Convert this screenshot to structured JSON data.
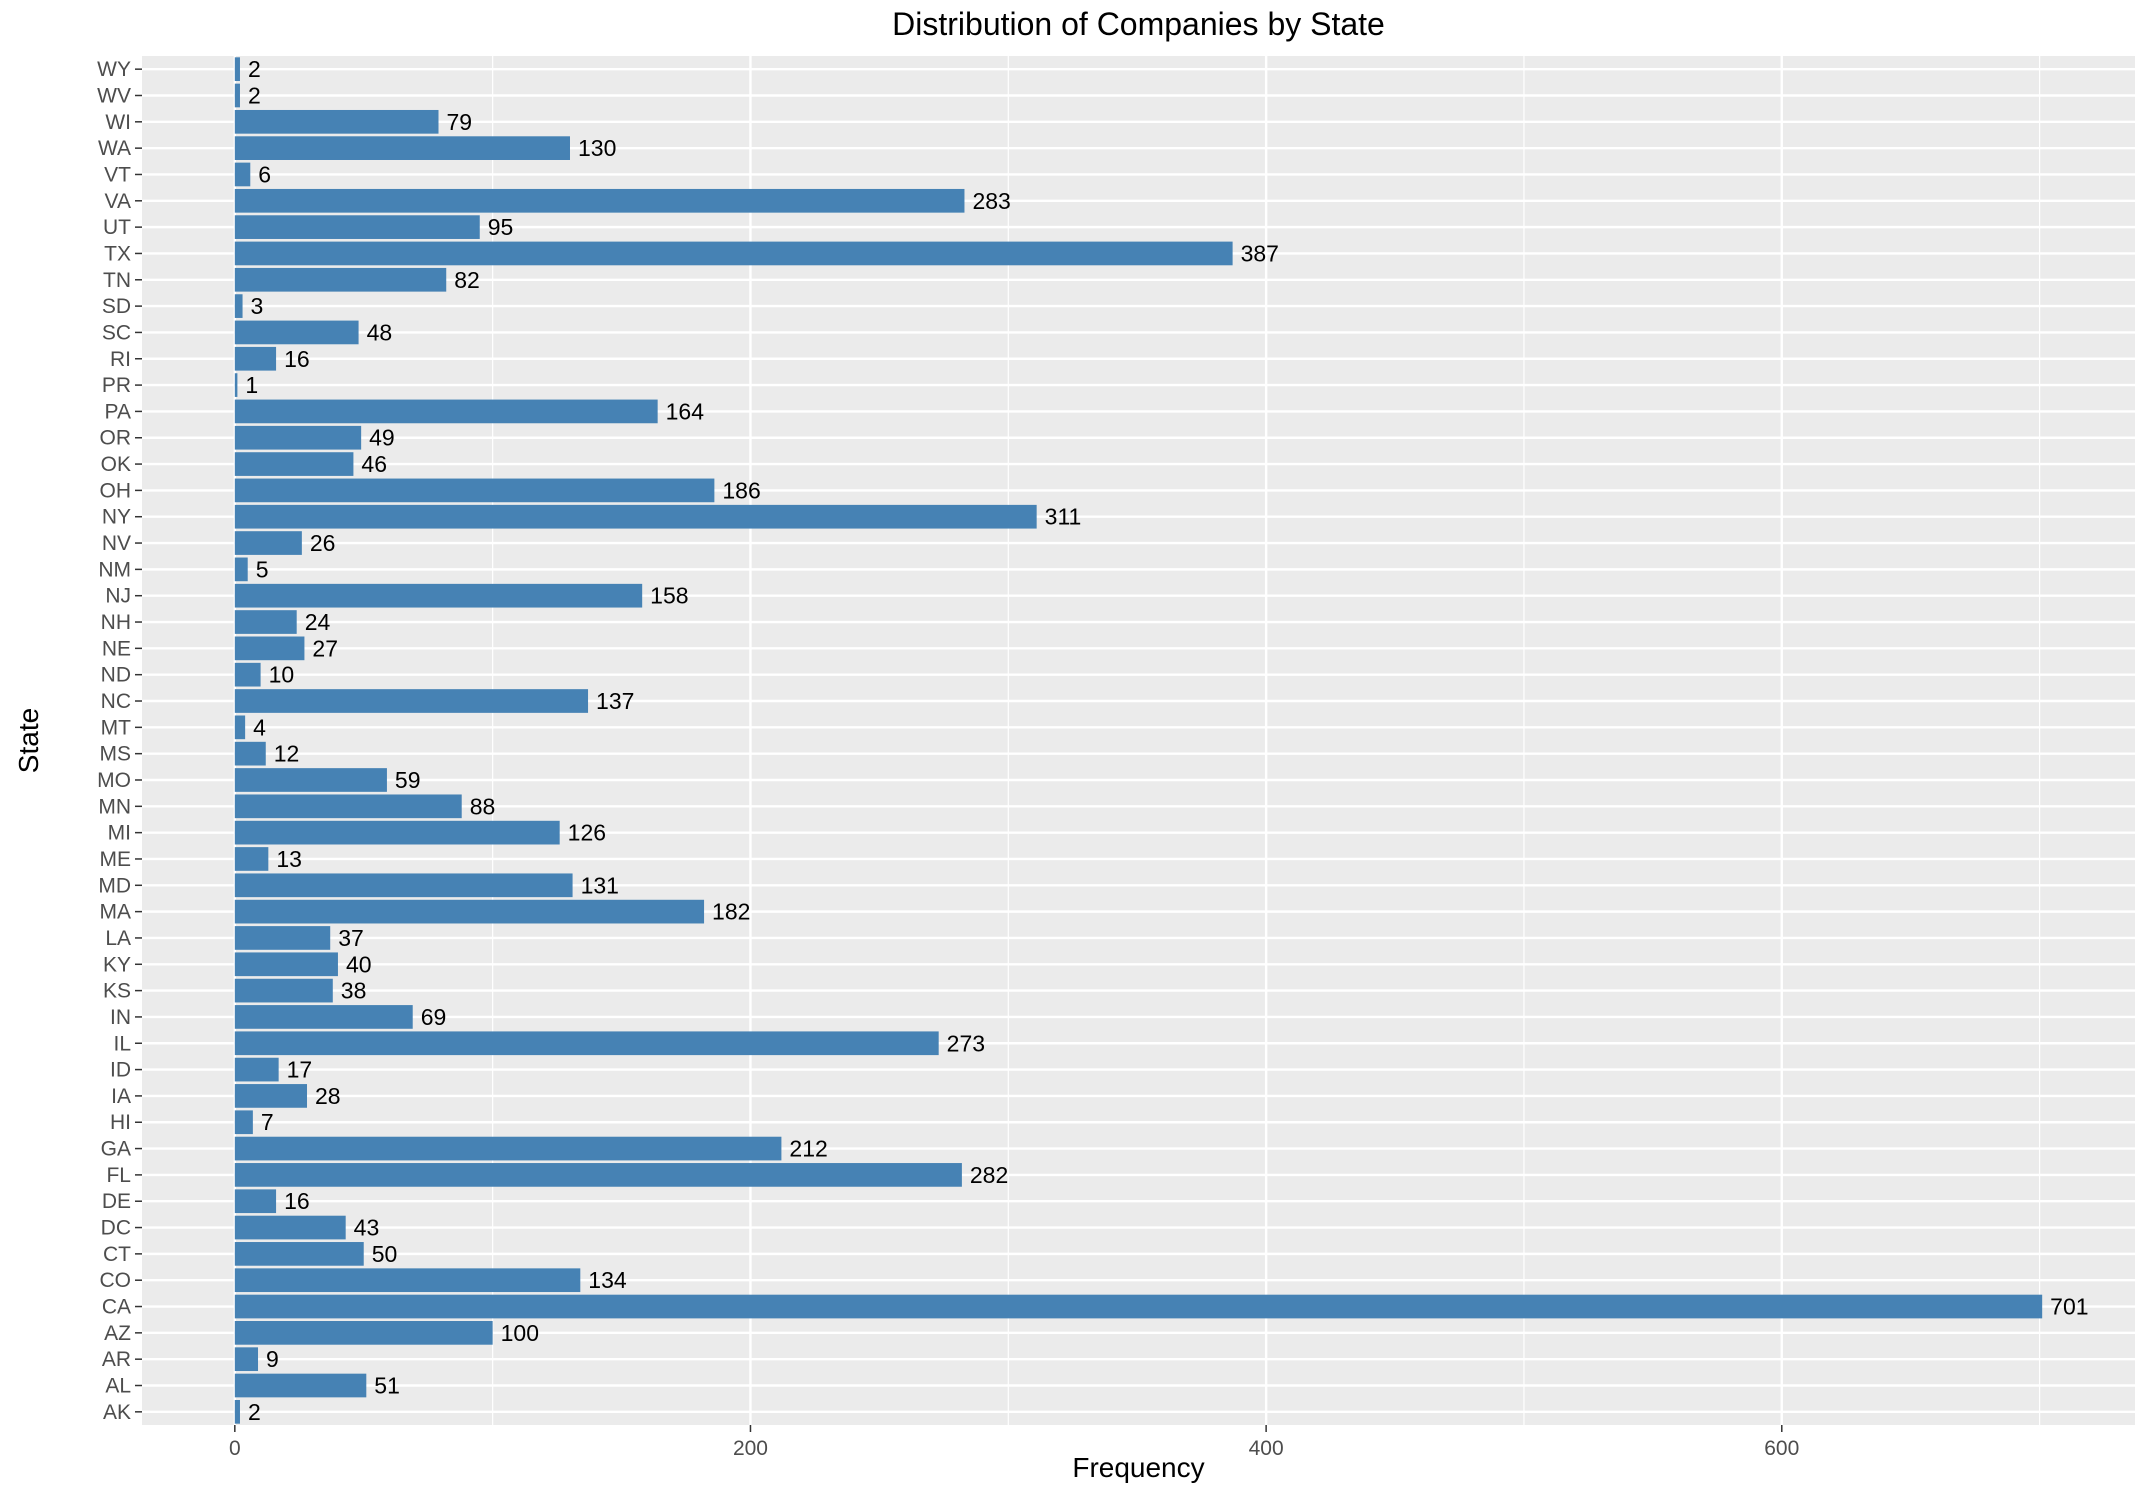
{
  "chart_data": {
    "type": "bar",
    "orientation": "horizontal",
    "title": "Distribution of Companies by State",
    "xlabel": "Frequency",
    "ylabel": "State",
    "categories": [
      "AK",
      "AL",
      "AR",
      "AZ",
      "CA",
      "CO",
      "CT",
      "DC",
      "DE",
      "FL",
      "GA",
      "HI",
      "IA",
      "ID",
      "IL",
      "IN",
      "KS",
      "KY",
      "LA",
      "MA",
      "MD",
      "ME",
      "MI",
      "MN",
      "MO",
      "MS",
      "MT",
      "NC",
      "ND",
      "NE",
      "NH",
      "NJ",
      "NM",
      "NV",
      "NY",
      "OH",
      "OK",
      "OR",
      "PA",
      "PR",
      "RI",
      "SC",
      "SD",
      "TN",
      "TX",
      "UT",
      "VA",
      "VT",
      "WA",
      "WI",
      "WV",
      "WY"
    ],
    "values": [
      2,
      51,
      9,
      100,
      701,
      134,
      50,
      43,
      16,
      282,
      212,
      7,
      28,
      17,
      273,
      69,
      38,
      40,
      37,
      182,
      131,
      13,
      126,
      88,
      59,
      12,
      4,
      137,
      10,
      27,
      24,
      158,
      5,
      26,
      311,
      186,
      46,
      49,
      164,
      1,
      16,
      48,
      3,
      82,
      387,
      95,
      283,
      6,
      130,
      79,
      2,
      2
    ],
    "xlim": [
      -36,
      737
    ],
    "xticks": [
      0,
      200,
      400,
      600
    ],
    "grid": true,
    "bar_color": "#4682B4",
    "panel_background": "#EBEBEB",
    "legend": "none"
  }
}
